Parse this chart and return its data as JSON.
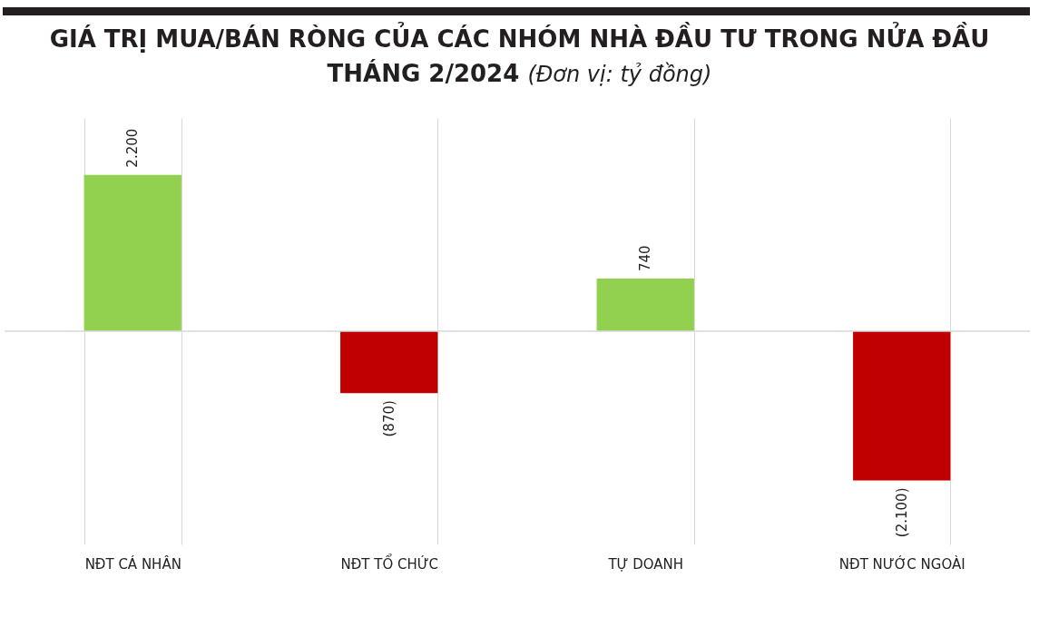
{
  "chart_data": {
    "type": "bar",
    "title": "GIÁ TRỊ MUA/BÁN RÒNG CỦA CÁC NHÓM NHÀ ĐẦU TƯ TRONG NỬA ĐẦU THÁNG 2/2024",
    "subtitle": "(Đơn vị: tỷ đồng)",
    "categories": [
      "NĐT CÁ NHÂN",
      "NĐT TỔ CHỨC",
      "TỰ DOANH",
      "NĐT NƯỚC NGOÀI"
    ],
    "values": [
      2200,
      -870,
      740,
      -2100
    ],
    "colors": [
      "#92d050",
      "#c00000",
      "#92d050",
      "#c00000"
    ],
    "value_labels": [
      "2.200",
      "(870)",
      "740",
      "(2.100)"
    ],
    "grid": "x"
  }
}
